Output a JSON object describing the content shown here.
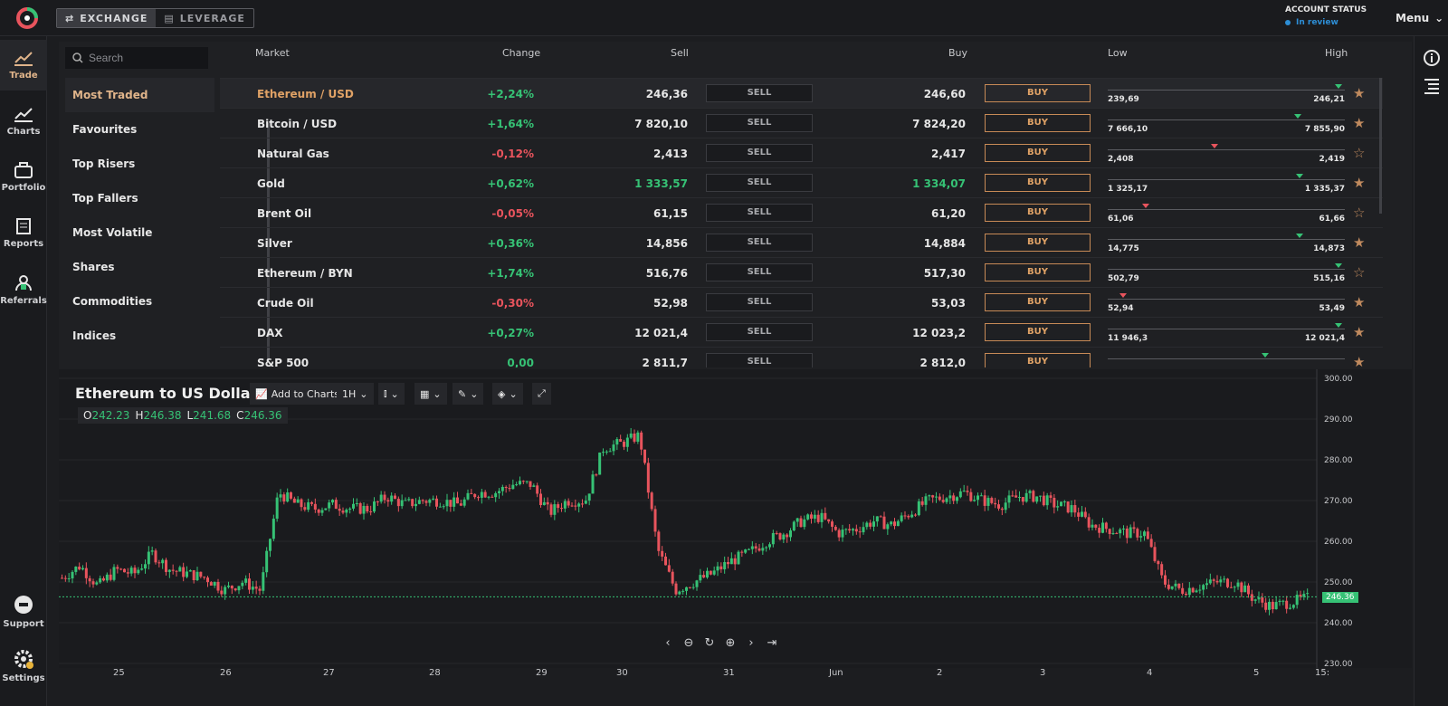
{
  "topbar": {
    "tabs": [
      {
        "label": "EXCHANGE",
        "icon": "exchange-icon"
      },
      {
        "label": "LEVERAGE",
        "icon": "leverage-icon"
      }
    ],
    "account_status_label": "ACCOUNT STATUS",
    "account_status_value": "In review",
    "menu_label": "Menu"
  },
  "sidebar": {
    "items": [
      {
        "label": "Trade",
        "icon": "trade-icon"
      },
      {
        "label": "Charts",
        "icon": "charts-icon"
      },
      {
        "label": "Portfolio",
        "icon": "portfolio-icon"
      },
      {
        "label": "Reports",
        "icon": "reports-icon"
      },
      {
        "label": "Referrals",
        "icon": "referrals-icon"
      }
    ],
    "bottom": [
      {
        "label": "Support",
        "icon": "support-icon"
      },
      {
        "label": "Settings",
        "icon": "settings-icon"
      }
    ]
  },
  "search": {
    "placeholder": "Search"
  },
  "categories": [
    "Most Traded",
    "Favourites",
    "Top Risers",
    "Top Fallers",
    "Most Volatile",
    "Shares",
    "Commodities",
    "Indices"
  ],
  "table": {
    "headers": {
      "market": "Market",
      "change": "Change",
      "sell": "Sell",
      "buy": "Buy",
      "low": "Low",
      "high": "High"
    },
    "sell_label": "SELL",
    "buy_label": "BUY",
    "rows": [
      {
        "market": "Ethereum / USD",
        "change": "+2,24%",
        "sell": "246,36",
        "buy": "246,60",
        "low": "239,69",
        "high": "246,21",
        "pos": 0.99,
        "dir": "g",
        "fav": true
      },
      {
        "market": "Bitcoin / USD",
        "change": "+1,64%",
        "sell": "7 820,10",
        "buy": "7 824,20",
        "low": "7 666,10",
        "high": "7 855,90",
        "pos": 0.81,
        "dir": "g",
        "fav": true
      },
      {
        "market": "Natural Gas",
        "change": "-0,12%",
        "sell": "2,413",
        "buy": "2,417",
        "low": "2,408",
        "high": "2,419",
        "pos": 0.45,
        "dir": "r",
        "fav": false
      },
      {
        "market": "Gold",
        "change": "+0,62%",
        "sell": "1 333,57",
        "buy": "1 334,07",
        "low": "1 325,17",
        "high": "1 335,37",
        "pos": 0.82,
        "dir": "g",
        "fav": true,
        "green_price": true
      },
      {
        "market": "Brent Oil",
        "change": "-0,05%",
        "sell": "61,15",
        "buy": "61,20",
        "low": "61,06",
        "high": "61,66",
        "pos": 0.15,
        "dir": "r",
        "fav": false
      },
      {
        "market": "Silver",
        "change": "+0,36%",
        "sell": "14,856",
        "buy": "14,884",
        "low": "14,775",
        "high": "14,873",
        "pos": 0.82,
        "dir": "g",
        "fav": true
      },
      {
        "market": "Ethereum / BYN",
        "change": "+1,74%",
        "sell": "516,76",
        "buy": "517,30",
        "low": "502,79",
        "high": "515,16",
        "pos": 0.99,
        "dir": "g",
        "fav": false
      },
      {
        "market": "Crude Oil",
        "change": "-0,30%",
        "sell": "52,98",
        "buy": "53,03",
        "low": "52,94",
        "high": "53,49",
        "pos": 0.05,
        "dir": "r",
        "fav": true
      },
      {
        "market": "DAX",
        "change": "+0,27%",
        "sell": "12 021,4",
        "buy": "12 023,2",
        "low": "11 946,3",
        "high": "12 021,4",
        "pos": 0.99,
        "dir": "g",
        "fav": true
      },
      {
        "market": "S&P 500",
        "change": "0,00",
        "sell": "2 811,7",
        "buy": "2 812,0",
        "low": "",
        "high": "",
        "pos": 0.67,
        "dir": "g",
        "fav": true
      }
    ]
  },
  "chart": {
    "title": "Ethereum to US Dollar",
    "ohlc": {
      "o_label": "O",
      "o": "242.23",
      "h_label": "H",
      "h": "246.38",
      "l_label": "L",
      "l": "241.68",
      "c_label": "C",
      "c": "246.36"
    },
    "toolbar": {
      "add_label": "Add to Charts",
      "interval": "1H"
    },
    "current_price": "246.36",
    "colors": {
      "up": "#36c275",
      "down": "#e8545d"
    }
  },
  "chart_data": {
    "type": "candlestick",
    "yticks": [
      "300.00",
      "290.00",
      "280.00",
      "270.00",
      "260.00",
      "250.00",
      "240.00",
      "230.00"
    ],
    "xticks": [
      "25",
      "26",
      "27",
      "28",
      "29",
      "30",
      "31",
      "Jun",
      "2",
      "3",
      "4",
      "5",
      "15:"
    ],
    "ylim": [
      230,
      300
    ],
    "current_price": 246.36,
    "close_path": [
      251,
      254,
      249,
      253,
      252,
      257,
      253,
      252,
      251,
      248,
      250,
      248,
      272,
      269,
      268,
      269,
      268,
      268,
      271,
      269,
      270,
      270,
      269,
      272,
      272,
      274,
      274,
      267,
      270,
      270,
      283,
      284,
      286,
      258,
      248,
      250,
      252,
      255,
      257,
      260,
      262,
      265,
      266,
      262,
      263,
      265,
      264,
      267,
      270,
      271,
      272,
      270,
      269,
      271,
      271,
      269,
      268,
      264,
      263,
      262,
      262,
      250,
      248,
      249,
      250,
      250,
      246,
      244,
      245,
      246
    ]
  }
}
